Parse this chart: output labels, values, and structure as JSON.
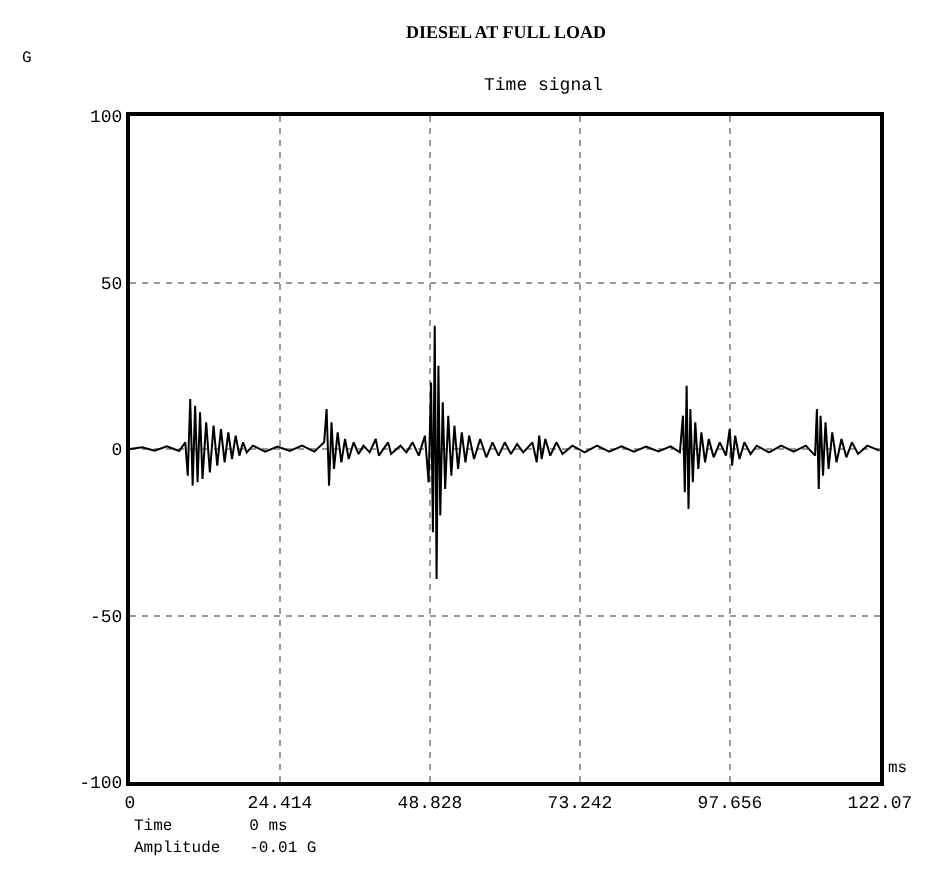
{
  "chart_data": {
    "type": "line",
    "title": "DIESEL AT FULL LOAD",
    "subtitle": "Time signal",
    "xlabel": "ms",
    "ylabel": "G",
    "annotations": [
      "Time        0 ms",
      "Amplitude   -0.01 G"
    ],
    "xlim": [
      0,
      122.07
    ],
    "xticks": [
      0,
      24.414,
      48.828,
      73.242,
      97.656,
      122.07
    ],
    "ylim": [
      -100,
      100
    ],
    "yticks": [
      -100,
      -50,
      0,
      50,
      100
    ],
    "grid": true,
    "marker": "none",
    "line_style": "solid",
    "x": [
      0,
      2,
      4,
      6,
      8,
      9,
      9.4,
      9.8,
      10.2,
      10.6,
      11,
      11.4,
      11.8,
      12.4,
      13,
      13.6,
      14.2,
      14.8,
      15.4,
      16,
      16.6,
      17.2,
      17.8,
      18.4,
      19,
      20,
      22,
      24,
      26,
      28,
      30,
      31.6,
      32,
      32.4,
      32.8,
      33.2,
      33.8,
      34.4,
      35,
      35.6,
      36.4,
      37.2,
      38,
      39,
      40,
      40.5,
      42,
      42.5,
      44,
      45,
      46,
      47,
      48,
      48.6,
      49,
      49.3,
      49.6,
      49.9,
      50.2,
      50.5,
      50.9,
      51.3,
      51.8,
      52.3,
      52.8,
      53.4,
      54,
      54.6,
      55.2,
      56,
      57,
      58,
      59,
      60,
      61,
      62,
      63,
      64,
      65.5,
      66.2,
      66.6,
      67,
      67.6,
      68.4,
      69.4,
      70.4,
      72,
      74,
      76,
      78,
      80,
      82,
      84,
      86,
      88,
      89.5,
      90,
      90.3,
      90.6,
      90.9,
      91.2,
      91.6,
      92,
      92.5,
      93,
      93.6,
      94.2,
      95,
      96,
      97,
      97.6,
      98,
      98.5,
      99.2,
      100,
      101,
      102,
      104,
      106,
      108,
      110,
      111.5,
      111.8,
      112.1,
      112.4,
      112.8,
      113.2,
      113.7,
      114.3,
      115,
      115.8,
      116.6,
      117.5,
      118.5,
      120,
      122
    ],
    "series": [
      {
        "color": "#000000",
        "values": [
          0,
          0.5,
          -0.5,
          0.8,
          -0.6,
          2,
          -8,
          15,
          -11,
          13,
          -10,
          11,
          -9,
          8,
          -7,
          7,
          -5,
          6,
          -4,
          5,
          -3,
          4,
          -2,
          2,
          -1,
          1,
          -0.8,
          0.7,
          -0.6,
          1,
          -0.8,
          2,
          12,
          -11,
          8,
          -6,
          5,
          -4,
          3,
          -3,
          2,
          -1.5,
          1,
          -1,
          3,
          -2,
          2,
          -1.5,
          1,
          -1,
          2,
          -2,
          4,
          -10,
          20,
          -25,
          37,
          -39,
          25,
          -20,
          14,
          -12,
          10,
          -8,
          7,
          -6,
          5,
          -4,
          4,
          -3,
          3,
          -2.5,
          2,
          -2,
          2,
          -1.5,
          1.5,
          -1,
          2,
          -4,
          4,
          -3,
          3,
          -2,
          2,
          -1.5,
          1,
          -1,
          1,
          -0.8,
          0.8,
          -0.8,
          0.7,
          -0.7,
          0.8,
          -1,
          10,
          -13,
          19,
          -18,
          12,
          -10,
          8,
          -6,
          5,
          -4,
          3,
          -2.5,
          2,
          -2,
          6,
          -5,
          4,
          -3,
          2,
          -1.5,
          1,
          -1,
          1,
          -0.8,
          1,
          -2,
          12,
          -12,
          10,
          -8,
          8,
          -6,
          5,
          -4,
          3,
          -2.5,
          2,
          -1.5,
          1,
          -0.5
        ]
      }
    ]
  }
}
